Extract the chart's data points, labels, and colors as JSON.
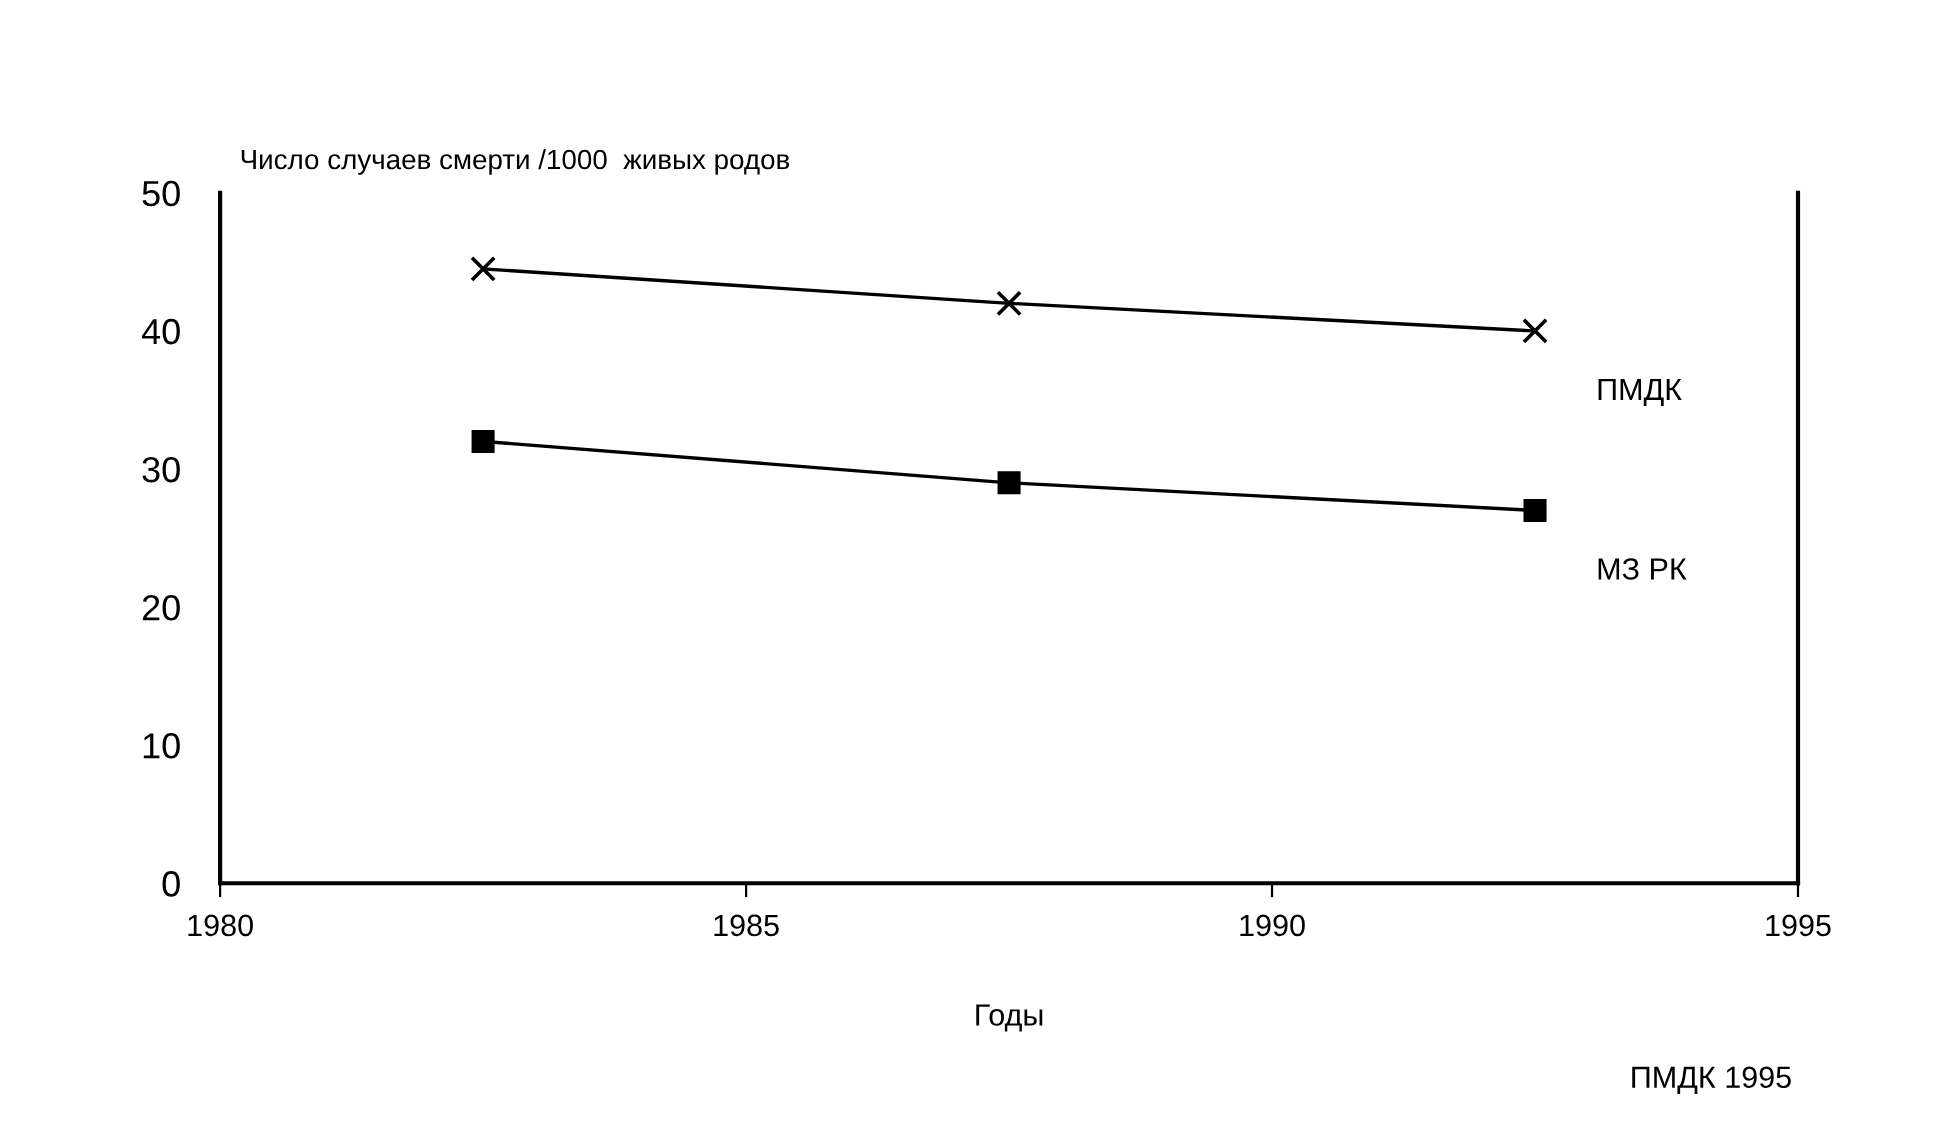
{
  "chart_data": {
    "type": "line",
    "ylabel": "Число случаев смерти /1000  живых родов",
    "xlabel": "Годы",
    "x": [
      1982.5,
      1987.5,
      1992.5
    ],
    "series": [
      {
        "name": "ПМДК",
        "color": "#000000",
        "marker": "cross",
        "values": [
          44.5,
          42,
          40
        ]
      },
      {
        "name": "МЗ РК",
        "color": "#000000",
        "marker": "square",
        "values": [
          32,
          29,
          27
        ]
      }
    ],
    "xlim": [
      1980,
      1995
    ],
    "xticks": [
      1980,
      1985,
      1990,
      1995
    ],
    "ylim": [
      0,
      50
    ],
    "yticks": [
      0,
      10,
      20,
      30,
      40,
      50
    ],
    "grid": false,
    "legend": false,
    "annotations": [
      "ПМДК 1995"
    ]
  }
}
